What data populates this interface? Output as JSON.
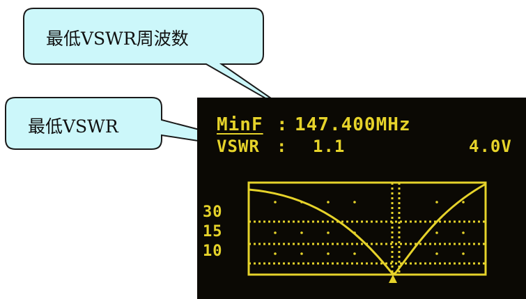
{
  "callouts": {
    "min_freq_label": "最低VSWR周波数",
    "min_vswr_label": "最低VSWR"
  },
  "display": {
    "minf_label": "MinF",
    "minf_sep": ":",
    "minf_value": "147.400MHz",
    "vswr_label": "VSWR",
    "vswr_sep": ":",
    "vswr_value": "1.1",
    "battery_value": "4.0V",
    "scale": [
      "30",
      "15",
      "10"
    ]
  },
  "colors": {
    "callout_fill": "#ccf7fa",
    "callout_stroke": "#1a1a1a",
    "lcd_bg": "#0b0904",
    "lcd_fg": "#e6d32a"
  }
}
